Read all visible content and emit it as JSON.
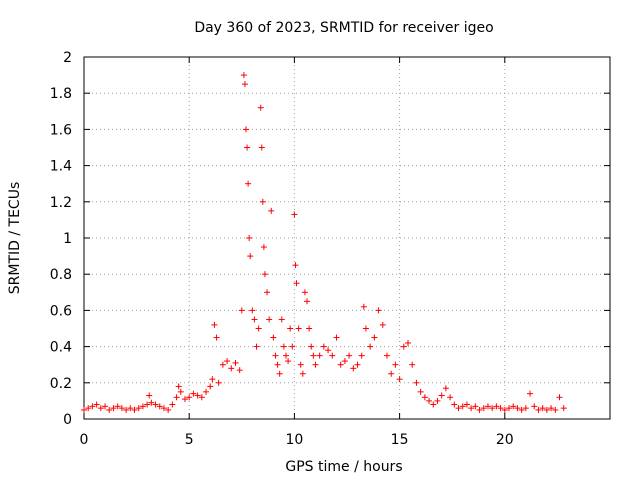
{
  "chart_data": {
    "type": "scatter",
    "title": "Day 360 of 2023, SRMTID for receiver igeo",
    "xlabel": "GPS time / hours",
    "ylabel": "SRMTID / TECUs",
    "xlim": [
      0,
      25
    ],
    "ylim": [
      0,
      2
    ],
    "xticks": [
      0,
      5,
      10,
      15,
      20
    ],
    "xtick_labels": [
      "0",
      "5",
      "10",
      "15",
      "20"
    ],
    "yticks": [
      0,
      0.2,
      0.4,
      0.6,
      0.8,
      1,
      1.2,
      1.4,
      1.6,
      1.8,
      2
    ],
    "ytick_labels": [
      "0",
      "0.2",
      "0.4",
      "0.6",
      "0.8",
      "1",
      "1.2",
      "1.4",
      "1.6",
      "1.8",
      "2"
    ],
    "grid": true,
    "marker": "+",
    "marker_color": "#ff0000",
    "series": [
      {
        "name": "SRMTID",
        "x": [
          0.0,
          0.2,
          0.4,
          0.6,
          0.8,
          1.0,
          1.2,
          1.4,
          1.6,
          1.8,
          2.0,
          2.2,
          2.4,
          2.6,
          2.8,
          3.0,
          3.1,
          3.2,
          3.4,
          3.6,
          3.8,
          4.0,
          4.2,
          4.4,
          4.5,
          4.6,
          4.8,
          5.0,
          5.2,
          5.4,
          5.6,
          5.8,
          6.0,
          6.1,
          6.2,
          6.3,
          6.4,
          6.6,
          6.8,
          7.0,
          7.2,
          7.4,
          7.5,
          7.6,
          7.65,
          7.7,
          7.75,
          7.8,
          7.85,
          7.9,
          8.0,
          8.1,
          8.2,
          8.3,
          8.4,
          8.45,
          8.5,
          8.55,
          8.6,
          8.7,
          8.8,
          8.9,
          9.0,
          9.1,
          9.2,
          9.3,
          9.4,
          9.5,
          9.6,
          9.7,
          9.8,
          9.9,
          10.0,
          10.05,
          10.1,
          10.2,
          10.3,
          10.4,
          10.5,
          10.6,
          10.7,
          10.8,
          10.9,
          11.0,
          11.2,
          11.4,
          11.6,
          11.8,
          12.0,
          12.2,
          12.4,
          12.6,
          12.8,
          13.0,
          13.2,
          13.3,
          13.4,
          13.6,
          13.8,
          14.0,
          14.2,
          14.4,
          14.6,
          14.8,
          15.0,
          15.2,
          15.4,
          15.6,
          15.8,
          16.0,
          16.2,
          16.4,
          16.6,
          16.8,
          17.0,
          17.2,
          17.4,
          17.6,
          17.8,
          18.0,
          18.2,
          18.4,
          18.6,
          18.8,
          19.0,
          19.2,
          19.4,
          19.6,
          19.8,
          20.0,
          20.2,
          20.4,
          20.6,
          20.8,
          21.0,
          21.2,
          21.4,
          21.6,
          21.8,
          22.0,
          22.2,
          22.4,
          22.6,
          22.8
        ],
        "values": [
          0.05,
          0.06,
          0.07,
          0.08,
          0.06,
          0.07,
          0.05,
          0.06,
          0.07,
          0.06,
          0.05,
          0.06,
          0.05,
          0.06,
          0.07,
          0.08,
          0.13,
          0.09,
          0.08,
          0.07,
          0.06,
          0.05,
          0.08,
          0.12,
          0.18,
          0.15,
          0.11,
          0.12,
          0.14,
          0.13,
          0.12,
          0.15,
          0.18,
          0.22,
          0.52,
          0.45,
          0.2,
          0.3,
          0.32,
          0.28,
          0.31,
          0.27,
          0.6,
          1.9,
          1.85,
          1.6,
          1.5,
          1.3,
          1.0,
          0.9,
          0.6,
          0.55,
          0.4,
          0.5,
          1.72,
          1.5,
          1.2,
          0.95,
          0.8,
          0.7,
          0.55,
          1.15,
          0.45,
          0.35,
          0.3,
          0.25,
          0.55,
          0.4,
          0.35,
          0.32,
          0.5,
          0.4,
          1.13,
          0.85,
          0.75,
          0.5,
          0.3,
          0.25,
          0.7,
          0.65,
          0.5,
          0.4,
          0.35,
          0.3,
          0.35,
          0.4,
          0.38,
          0.35,
          0.45,
          0.3,
          0.32,
          0.35,
          0.28,
          0.3,
          0.35,
          0.62,
          0.5,
          0.4,
          0.45,
          0.6,
          0.52,
          0.35,
          0.25,
          0.3,
          0.22,
          0.4,
          0.42,
          0.3,
          0.2,
          0.15,
          0.12,
          0.1,
          0.08,
          0.1,
          0.13,
          0.17,
          0.12,
          0.08,
          0.06,
          0.07,
          0.08,
          0.06,
          0.07,
          0.05,
          0.06,
          0.07,
          0.06,
          0.07,
          0.06,
          0.05,
          0.06,
          0.07,
          0.06,
          0.05,
          0.06,
          0.14,
          0.07,
          0.05,
          0.06,
          0.05,
          0.06,
          0.05,
          0.12,
          0.06
        ]
      }
    ]
  }
}
